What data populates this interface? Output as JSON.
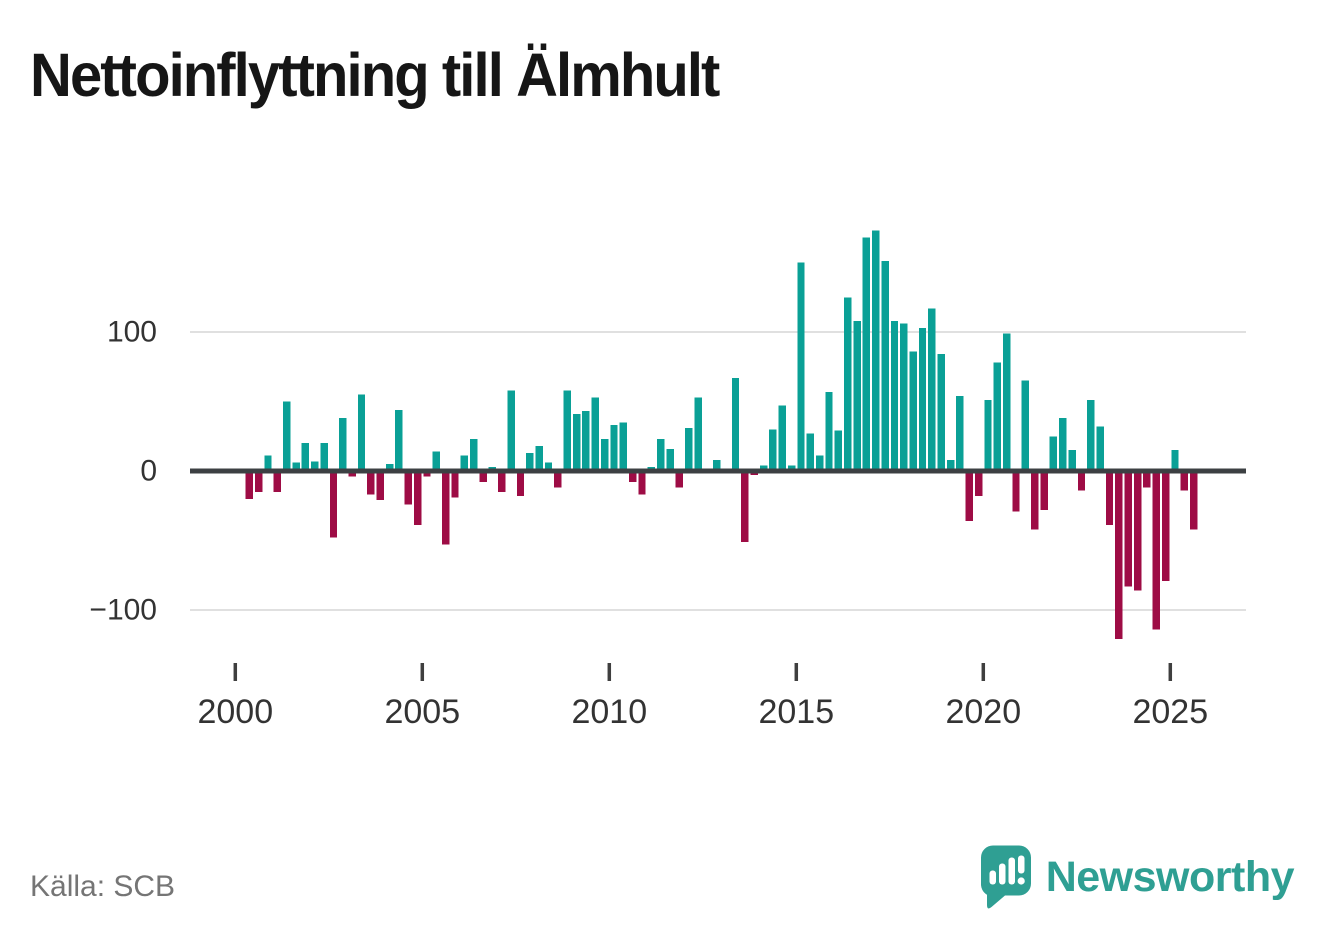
{
  "page": {
    "title": "Nettoinflyttning till Älmhult"
  },
  "source": {
    "label": "Källa: SCB"
  },
  "brand": {
    "name": "Newsworthy",
    "icon": "speech-bubble-bar-chart-icon"
  },
  "colors": {
    "positive": "#0aa096",
    "negative": "#9e0c45",
    "axis": "#3c4043",
    "grid": "#e0e0e0",
    "tick": "#3f3f3f",
    "tick_label": "#333333",
    "title_text": "#161616",
    "source_text": "#757575",
    "brand_teal": "#2f9f93"
  },
  "chart_data": {
    "type": "bar",
    "title": "Nettoinflyttning till Älmhult",
    "xlabel": "",
    "ylabel": "",
    "legend": "none",
    "grid": "horizontal",
    "ylim": [
      -135,
      180
    ],
    "y_ticks": [
      {
        "value": 100,
        "label": "100"
      },
      {
        "value": 0,
        "label": "0"
      },
      {
        "value": -100,
        "label": "−100"
      }
    ],
    "x_ticks": [
      "2000",
      "2005",
      "2010",
      "2015",
      "2020",
      "2025"
    ],
    "x": [
      "2000 Q1",
      "2000 Q2",
      "2000 Q3",
      "2000 Q4",
      "2001 Q1",
      "2001 Q2",
      "2001 Q3",
      "2001 Q4",
      "2002 Q1",
      "2002 Q2",
      "2002 Q3",
      "2002 Q4",
      "2003 Q1",
      "2003 Q2",
      "2003 Q3",
      "2003 Q4",
      "2004 Q1",
      "2004 Q2",
      "2004 Q3",
      "2004 Q4",
      "2005 Q1",
      "2005 Q2",
      "2005 Q3",
      "2005 Q4",
      "2006 Q1",
      "2006 Q2",
      "2006 Q3",
      "2006 Q4",
      "2007 Q1",
      "2007 Q2",
      "2007 Q3",
      "2007 Q4",
      "2008 Q1",
      "2008 Q2",
      "2008 Q3",
      "2008 Q4",
      "2009 Q1",
      "2009 Q2",
      "2009 Q3",
      "2009 Q4",
      "2010 Q1",
      "2010 Q2",
      "2010 Q3",
      "2010 Q4",
      "2011 Q1",
      "2011 Q2",
      "2011 Q3",
      "2011 Q4",
      "2012 Q1",
      "2012 Q2",
      "2012 Q3",
      "2012 Q4",
      "2013 Q1",
      "2013 Q2",
      "2013 Q3",
      "2013 Q4",
      "2014 Q1",
      "2014 Q2",
      "2014 Q3",
      "2014 Q4",
      "2015 Q1",
      "2015 Q2",
      "2015 Q3",
      "2015 Q4",
      "2016 Q1",
      "2016 Q2",
      "2016 Q3",
      "2016 Q4",
      "2017 Q1",
      "2017 Q2",
      "2017 Q3",
      "2017 Q4",
      "2018 Q1",
      "2018 Q2",
      "2018 Q3",
      "2018 Q4",
      "2019 Q1",
      "2019 Q2",
      "2019 Q3",
      "2019 Q4",
      "2020 Q1",
      "2020 Q2",
      "2020 Q3",
      "2020 Q4",
      "2021 Q1",
      "2021 Q2",
      "2021 Q3",
      "2021 Q4",
      "2022 Q1",
      "2022 Q2",
      "2022 Q3",
      "2022 Q4",
      "2023 Q1",
      "2023 Q2",
      "2023 Q3",
      "2023 Q4",
      "2024 Q1",
      "2024 Q2",
      "2024 Q3",
      "2024 Q4",
      "2025 Q1",
      "2025 Q2",
      "2025 Q3"
    ],
    "values": [
      0,
      -20,
      -15,
      11,
      -15,
      50,
      6,
      20,
      7,
      20,
      -48,
      38,
      -4,
      55,
      -17,
      -21,
      5,
      44,
      -24,
      -39,
      -4,
      14,
      -53,
      -19,
      11,
      23,
      -8,
      3,
      -15,
      58,
      -18,
      13,
      18,
      6,
      -12,
      58,
      41,
      43,
      53,
      23,
      33,
      35,
      -8,
      -17,
      3,
      23,
      16,
      -12,
      31,
      53,
      0,
      8,
      0,
      67,
      -51,
      -3,
      4,
      30,
      47,
      4,
      150,
      27,
      11,
      57,
      29,
      125,
      108,
      168,
      173,
      151,
      108,
      106,
      86,
      103,
      117,
      84,
      8,
      54,
      -36,
      -18,
      51,
      78,
      99,
      -29,
      65,
      -42,
      -28,
      25,
      38,
      15,
      -14,
      51,
      32,
      -39,
      -121,
      -83,
      -86,
      -12,
      -114,
      -79,
      15,
      -14,
      -42
    ],
    "positive_color": "#0aa096",
    "negative_color": "#9e0c45"
  }
}
